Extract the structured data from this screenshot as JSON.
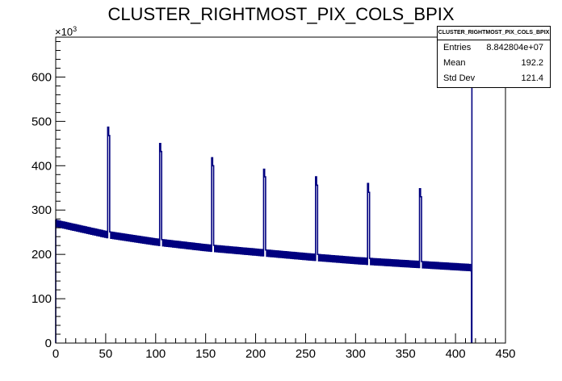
{
  "chart_data": {
    "type": "histogram",
    "title": "CLUSTER_RIGHTMOST_PIX_COLS_BPIX",
    "xlabel": "",
    "ylabel": "",
    "y_scale_label": "×10",
    "y_scale_exponent": "3",
    "xlim": [
      0,
      450
    ],
    "ylim": [
      0,
      690
    ],
    "x_ticks": [
      0,
      50,
      100,
      150,
      200,
      250,
      300,
      350,
      400,
      450
    ],
    "y_ticks": [
      0,
      100,
      200,
      300,
      400,
      500,
      600
    ],
    "bin_width": 1,
    "baseline_trend": [
      [
        0,
        270
      ],
      [
        50,
        245
      ],
      [
        100,
        228
      ],
      [
        150,
        215
      ],
      [
        200,
        205
      ],
      [
        250,
        195
      ],
      [
        300,
        186
      ],
      [
        350,
        179
      ],
      [
        416,
        170
      ]
    ],
    "spikes": [
      {
        "x": 52,
        "values": [
          487,
          468
        ]
      },
      {
        "x": 104,
        "values": [
          450,
          432
        ]
      },
      {
        "x": 156,
        "values": [
          418,
          400
        ]
      },
      {
        "x": 208,
        "values": [
          392,
          375
        ]
      },
      {
        "x": 260,
        "values": [
          375,
          356
        ]
      },
      {
        "x": 312,
        "values": [
          360,
          340
        ]
      },
      {
        "x": 364,
        "values": [
          348,
          330
        ]
      }
    ],
    "last_bin": {
      "x": 416,
      "value": 690
    },
    "stats": {
      "title": "CLUSTER_RIGHTMOST_PIX_COLS_BPIX",
      "entries_label": "Entries",
      "entries_value": "8.842804e+07",
      "mean_label": "Mean",
      "mean_value": "192.2",
      "stddev_label": "Std Dev",
      "stddev_value": "121.4"
    },
    "line_color": "#00007f",
    "grid": false,
    "legend": "top-right stats box"
  }
}
